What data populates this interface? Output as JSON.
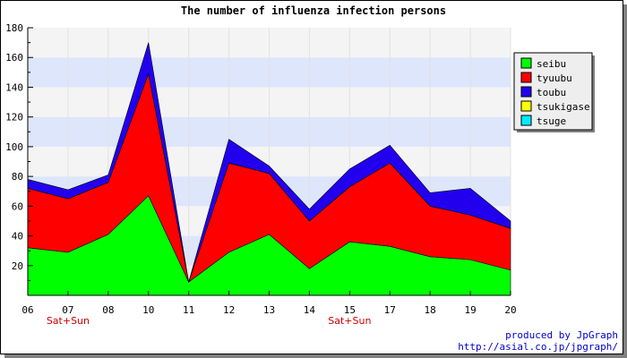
{
  "chart_data": {
    "type": "area",
    "stacked": true,
    "title": "The number of influenza infection persons",
    "categories": [
      "06",
      "07",
      "08",
      "10",
      "11",
      "12",
      "13",
      "14",
      "15",
      "17",
      "18",
      "19",
      "20"
    ],
    "weekend_markers": [
      {
        "category": "07",
        "label": "Sat+Sun"
      },
      {
        "category": "15",
        "label": "Sat+Sun"
      }
    ],
    "ylim": [
      0,
      180
    ],
    "yticks": [
      20,
      40,
      60,
      80,
      100,
      120,
      140,
      160,
      180
    ],
    "grid": true,
    "legend_position": "right",
    "series": [
      {
        "name": "seibu",
        "color": "#00ff00",
        "values": [
          32,
          29,
          41,
          67,
          9,
          29,
          41,
          18,
          36,
          33,
          26,
          24,
          17
        ]
      },
      {
        "name": "tyuubu",
        "color": "#ff0000",
        "values": [
          40,
          36,
          35,
          82,
          0,
          60,
          41,
          32,
          37,
          56,
          34,
          30,
          28
        ]
      },
      {
        "name": "toubu",
        "color": "#2200ee",
        "values": [
          6,
          6,
          5,
          21,
          0,
          16,
          5,
          8,
          12,
          12,
          9,
          18,
          5
        ]
      },
      {
        "name": "tsukigase",
        "color": "#ffff00",
        "values": [
          0,
          0,
          0,
          0,
          0,
          0,
          0,
          0,
          0,
          0,
          0,
          0,
          0
        ]
      },
      {
        "name": "tsuge",
        "color": "#00eeff",
        "values": [
          0,
          0,
          0,
          0,
          0,
          0,
          0,
          0,
          0,
          0,
          0,
          0,
          0
        ]
      }
    ]
  },
  "footer": {
    "produced_by": "produced by JpGraph",
    "url": "http://asial.co.jp/jpgraph/"
  }
}
